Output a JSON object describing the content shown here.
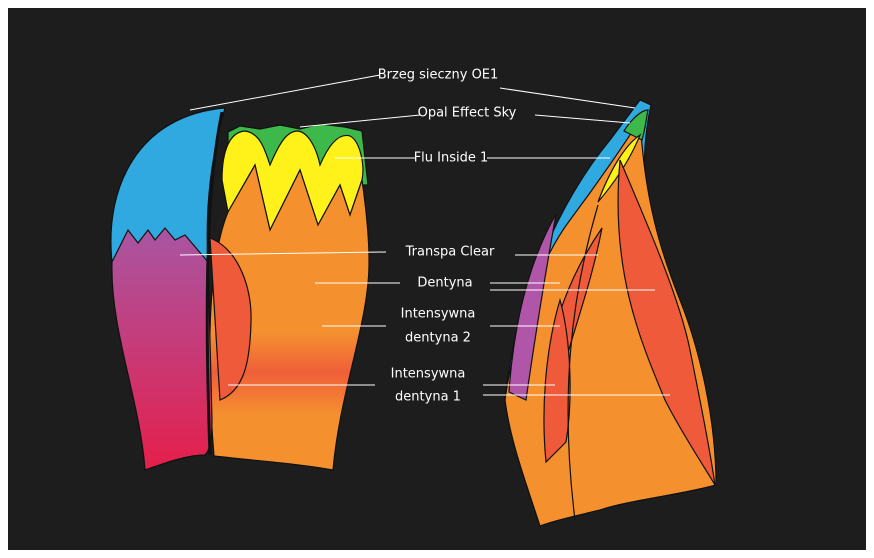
{
  "labels": [
    {
      "lines": [
        "Brzeg sieczny OE1"
      ]
    },
    {
      "lines": [
        "Opal Effect Sky"
      ]
    },
    {
      "lines": [
        "Flu Inside 1"
      ]
    },
    {
      "lines": [
        "Transpa Clear"
      ]
    },
    {
      "lines": [
        "Dentyna"
      ]
    },
    {
      "lines": [
        "Intensywna",
        "dentyna 2"
      ]
    },
    {
      "lines": [
        "Intensywna",
        "dentyna 1"
      ]
    }
  ]
}
